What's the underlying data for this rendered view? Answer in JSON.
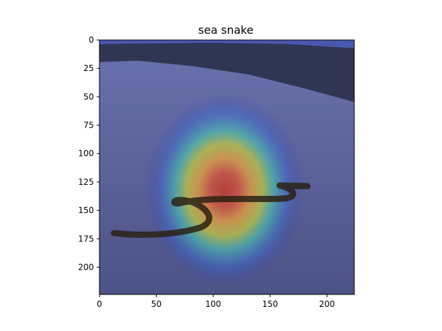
{
  "chart_data": {
    "type": "heatmap",
    "title": "sea snake",
    "xlim": [
      0,
      224
    ],
    "ylim": [
      224,
      0
    ],
    "x_ticks": [
      0,
      50,
      100,
      150,
      200
    ],
    "y_ticks": [
      0,
      25,
      50,
      75,
      100,
      125,
      150,
      175,
      200
    ],
    "x_tick_labels": [
      "0",
      "50",
      "100",
      "150",
      "200"
    ],
    "y_tick_labels": [
      "0",
      "25",
      "50",
      "75",
      "100",
      "125",
      "150",
      "175",
      "200"
    ],
    "grid": false,
    "colormap": "jet",
    "overlay": {
      "peak": [
        110,
        132
      ],
      "radius_x": 70,
      "radius_y": 85
    },
    "colors": {
      "road": "#5a5f92",
      "treeline": "#2f3553",
      "sky": "#5a66b8",
      "snake_body": "#2b2114"
    }
  }
}
